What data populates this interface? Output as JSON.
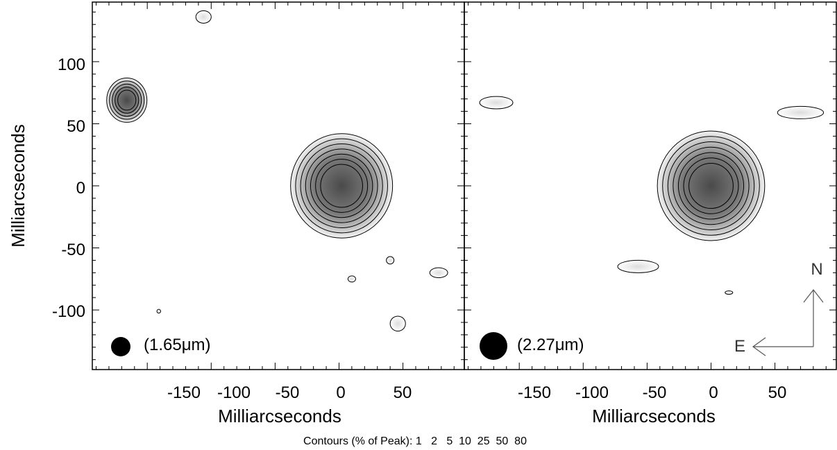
{
  "chart_data": {
    "type": "heatmap",
    "title": "",
    "contour_levels_label": "Contours (% of Peak): 1   2   5  10  25  50  80",
    "contour_levels": [
      1,
      2,
      5,
      10,
      25,
      50,
      80
    ],
    "ylabel": "Milliarcseconds",
    "y_ticks": [
      "100",
      "50",
      "0",
      "-50",
      "-100"
    ],
    "y_tick_values": [
      100,
      50,
      0,
      -50,
      -100
    ],
    "ylim": [
      -148,
      148
    ],
    "compass": {
      "north": "N",
      "east": "E"
    },
    "panels": [
      {
        "id": "left",
        "label": "(1.65μm)",
        "xlabel": "Milliarcseconds",
        "x_ticks": [
          "-150",
          "-100",
          "-50",
          "0",
          "50"
        ],
        "x_tick_values": [
          -150,
          -100,
          -50,
          0,
          50
        ],
        "xlim": [
          -193,
          98
        ],
        "sources": [
          {
            "name": "main",
            "x": 2,
            "y": 0,
            "rx": 38,
            "ry": 40,
            "levels": 7
          },
          {
            "name": "companion",
            "x": -166,
            "y": 69,
            "rx": 15,
            "ry": 17,
            "levels": 5
          }
        ],
        "noise_blobs": [
          {
            "x": -106,
            "y": 136,
            "rx": 6,
            "ry": 5
          },
          {
            "x": -141,
            "y": -101,
            "rx": 1.5,
            "ry": 1.5
          },
          {
            "x": 40,
            "y": -60,
            "rx": 3,
            "ry": 3
          },
          {
            "x": 10,
            "y": -75,
            "rx": 3,
            "ry": 2.5
          },
          {
            "x": 46,
            "y": -111,
            "rx": 6,
            "ry": 6
          },
          {
            "x": 78,
            "y": -70,
            "rx": 7,
            "ry": 4
          }
        ]
      },
      {
        "id": "right",
        "label": "(2.27μm)",
        "xlabel": "Milliarcseconds",
        "x_ticks": [
          "-150",
          "-100",
          "-50",
          "0",
          "50"
        ],
        "x_tick_values": [
          -150,
          -100,
          -50,
          0,
          50
        ],
        "xlim": [
          -193,
          98
        ],
        "sources": [
          {
            "name": "main",
            "x": 0,
            "y": 0,
            "rx": 40,
            "ry": 42,
            "levels": 7
          }
        ],
        "noise_blobs": [
          {
            "x": -168,
            "y": 67,
            "rx": 13,
            "ry": 5
          },
          {
            "x": 70,
            "y": 59,
            "rx": 18,
            "ry": 5
          },
          {
            "x": -57,
            "y": -65,
            "rx": 16,
            "ry": 5
          },
          {
            "x": 14,
            "y": -86,
            "rx": 3,
            "ry": 1
          }
        ]
      }
    ]
  }
}
